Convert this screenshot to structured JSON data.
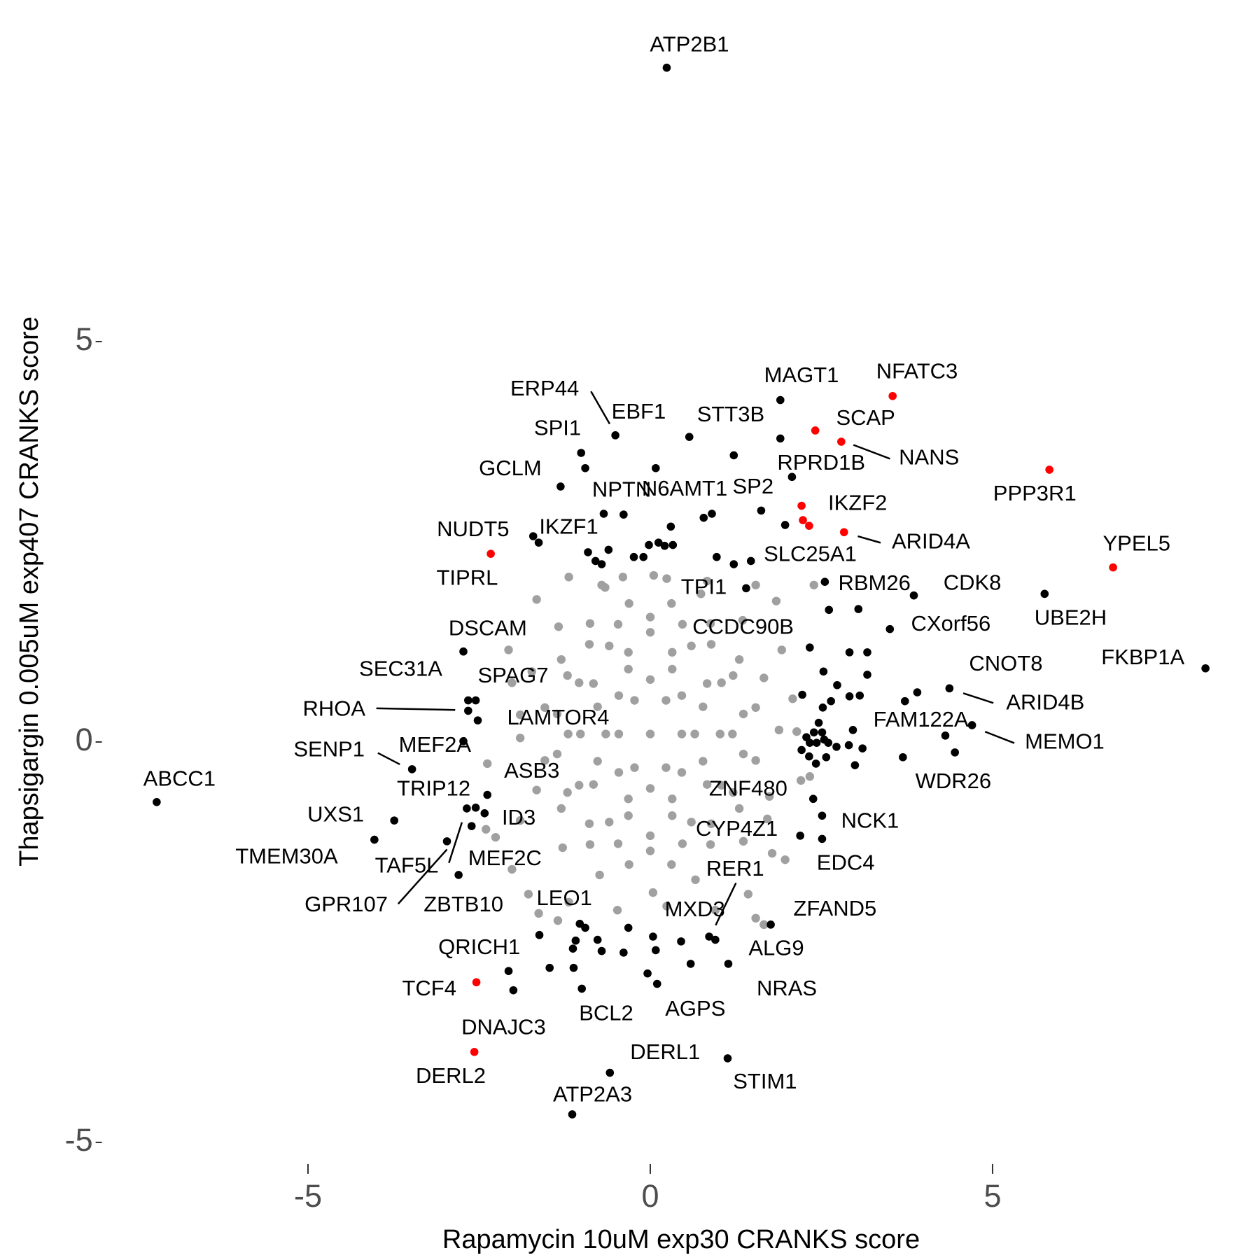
{
  "chart_data": {
    "type": "scatter",
    "x_label": "Rapamycin 10uM exp30 CRANKS score",
    "y_label": "Thapsigargin 0.005uM exp407 CRANKS score",
    "xlim": [
      -8,
      8.8
    ],
    "ylim": [
      -5.2,
      9.2
    ],
    "xticks": [
      -5,
      0,
      5
    ],
    "yticks": [
      -5,
      0,
      5
    ],
    "grid": false,
    "series": [
      {
        "color": "#a0a0a0",
        "x": [
          1.88,
          1.66,
          1.35,
          0.74,
          0.05,
          -0.66,
          -1.34,
          -1.73,
          -1.9,
          -1.66,
          -1.28,
          -0.74,
          0.04,
          0.66,
          1.36,
          1.74,
          1.54,
          1.3,
          0.88,
          0.31,
          -0.31,
          -0.88,
          -1.3,
          -1.54,
          -1.54,
          -1.3,
          -0.88,
          -0.31,
          0.31,
          0.88,
          1.3,
          1.54,
          1.36,
          1.21,
          0.89,
          0.47,
          0,
          -0.47,
          -0.89,
          -1.21,
          -1.36,
          -1.36,
          -1.21,
          -0.89,
          -0.47,
          0,
          0.47,
          0.89,
          1.21,
          1.36,
          1.2,
          1.04,
          0.6,
          0,
          -0.6,
          -1.04,
          -1.2,
          -1.04,
          -0.6,
          0,
          0.6,
          1.04,
          1.02,
          0.83,
          0.32,
          -0.32,
          -0.83,
          -1.02,
          -0.83,
          -0.32,
          0.32,
          0.83,
          0.77,
          0.32,
          -0.32,
          -0.77,
          -0.77,
          -0.32,
          0.32,
          0.77,
          0.65,
          0.46,
          0,
          -0.46,
          -0.65,
          -0.46,
          0,
          0.46,
          0.46,
          0.23,
          -0.23,
          -0.46,
          -0.23,
          0.23,
          0,
          2.39,
          1.92,
          1.97,
          1.66,
          1.54,
          2.33,
          1.71,
          -1.63,
          -1.35,
          -2.38,
          -2.07,
          -1.66,
          -1.19,
          -0.71,
          -0.4,
          -2.4,
          -2.26,
          -2.02,
          -1.78,
          2.14,
          2.08,
          2.2,
          1.78,
          1.43,
          0.95,
          0.24,
          -0.48,
          -1.19,
          -1.9,
          -2.02,
          1.84,
          1.54,
          0.83,
          0.24,
          -1.9
        ],
        "values": [
          0.15,
          0.8,
          1.52,
          1.85,
          2.08,
          1.93,
          1.44,
          0.88,
          0.05,
          -0.6,
          -1.32,
          -1.66,
          -1.88,
          -1.72,
          -1.24,
          -0.68,
          0.43,
          1.03,
          1.48,
          1.73,
          1.73,
          1.48,
          1.03,
          0.43,
          -0.23,
          -0.83,
          -1.28,
          -1.53,
          -1.53,
          -1.28,
          -0.83,
          -0.23,
          0.35,
          0.83,
          1.22,
          1.47,
          1.56,
          1.47,
          1.22,
          0.83,
          0.35,
          -0.15,
          -0.63,
          -1.02,
          -1.27,
          -1.36,
          -1.27,
          -1.02,
          -0.63,
          -0.15,
          0.1,
          0.74,
          1.2,
          1.37,
          1.2,
          0.74,
          0.1,
          -0.54,
          -1.0,
          -1.17,
          -1.0,
          -0.54,
          0.1,
          0.73,
          1.12,
          1.12,
          0.73,
          0.1,
          -0.53,
          -0.92,
          -0.92,
          -0.53,
          0.44,
          0.91,
          0.91,
          0.44,
          -0.24,
          -0.71,
          -0.71,
          -0.24,
          0.1,
          0.58,
          0.78,
          0.58,
          0.1,
          -0.38,
          -0.58,
          -0.38,
          0.1,
          0.52,
          0.52,
          0.1,
          -0.32,
          -0.32,
          0.1,
          1.96,
          1.15,
          -1.47,
          -2.28,
          -2.2,
          -0.43,
          -0.96,
          -2.14,
          -2.23,
          -0.27,
          1.15,
          1.78,
          2.06,
          1.96,
          2.06,
          -1.09,
          -1.19,
          -1.59,
          -1.9,
          0.13,
          0.54,
          -0.48,
          -1.39,
          -1.9,
          -2.1,
          -2.05,
          -2.1,
          -2.0,
          0.34,
          0.74,
          1.76,
          1.96,
          2.01,
          2.04,
          -0.98
        ]
      },
      {
        "color": "#000000",
        "x": [
          0.24,
          1.9,
          1.9,
          -0.51,
          0.57,
          -1.01,
          -0.95,
          0.08,
          1.22,
          -1.31,
          2.07,
          -0.68,
          -0.39,
          0.3,
          1.62,
          0.9,
          0.78,
          1.97,
          -1.71,
          -1.63,
          -0.91,
          -0.8,
          -0.71,
          -0.61,
          -0.24,
          -0.1,
          -0.02,
          0.12,
          0.21,
          0.33,
          0.97,
          1.22,
          1.47,
          1.4,
          2.55,
          2.61,
          3.04,
          3.85,
          5.76,
          3.5,
          2.33,
          -2.73,
          8.11,
          2.91,
          3.17,
          3.17,
          2.73,
          2.53,
          3.06,
          2.91,
          2.64,
          2.22,
          2.52,
          2.46,
          3.9,
          4.37,
          3.72,
          4.31,
          4.7,
          4.45,
          3.69,
          -2.66,
          -2.55,
          -2.66,
          -2.52,
          -2.73,
          -3.48,
          -7.21,
          -2.38,
          -2.55,
          -2.68,
          -2.42,
          -2.61,
          -3.74,
          -4.03,
          -2.97,
          -2.8,
          2.38,
          2.51,
          2.19,
          2.51,
          2.28,
          2.39,
          2.51,
          2.33,
          2.43,
          2.54,
          2.6,
          2.21,
          2.32,
          2.42,
          2.57,
          2.72,
          2.96,
          2.99,
          2.9,
          3.1,
          0.86,
          0.45,
          1.76,
          0.95,
          1.14,
          -1.03,
          -0.95,
          -1.09,
          -0.77,
          -0.71,
          -1.13,
          -1.62,
          -1.47,
          -1.12,
          -0.32,
          0.08,
          0.04,
          0.59,
          -0.04,
          -0.39,
          -2.07,
          -2.0,
          -1.0,
          0.1,
          -0.59,
          1.13,
          -1.14
        ],
        "values": [
          8.42,
          4.27,
          3.79,
          3.83,
          3.81,
          3.61,
          3.42,
          3.42,
          3.58,
          3.19,
          3.31,
          2.85,
          2.84,
          2.69,
          2.89,
          2.85,
          2.8,
          2.71,
          2.57,
          2.49,
          2.37,
          2.26,
          2.22,
          2.4,
          2.31,
          2.31,
          2.46,
          2.49,
          2.45,
          2.46,
          2.31,
          2.22,
          2.26,
          1.92,
          2.0,
          1.65,
          1.66,
          1.83,
          1.85,
          1.41,
          1.18,
          1.13,
          0.92,
          1.12,
          1.12,
          0.84,
          0.71,
          0.88,
          0.58,
          0.57,
          0.51,
          0.59,
          0.43,
          0.24,
          0.62,
          0.67,
          0.51,
          0.08,
          0.21,
          -0.13,
          -0.19,
          0.52,
          0.52,
          0.39,
          0.27,
          0.01,
          -0.34,
          -0.75,
          -0.66,
          -0.82,
          -0.83,
          -0.89,
          -1.05,
          -0.98,
          -1.22,
          -1.24,
          -1.66,
          -0.71,
          -0.92,
          -1.17,
          -1.21,
          0.06,
          0.12,
          0.12,
          -0.01,
          -0.01,
          0.03,
          -0.01,
          -0.1,
          -0.18,
          -0.27,
          -0.19,
          -0.06,
          0.15,
          -0.29,
          -0.04,
          -0.08,
          -2.43,
          -2.49,
          -2.28,
          -2.47,
          -2.77,
          -2.27,
          -2.32,
          -2.48,
          -2.47,
          -2.61,
          -2.58,
          -2.41,
          -2.82,
          -2.82,
          -2.32,
          -2.6,
          -2.43,
          -2.77,
          -2.89,
          -2.63,
          -2.86,
          -3.1,
          -3.08,
          -3.02,
          -4.13,
          -3.95,
          -4.65
        ],
        "labels": [
          "ATP2B1",
          "MAGT1",
          null,
          "ERP44",
          "STT3B",
          "SPI1",
          null,
          "EBF1",
          null,
          "GCLM",
          "RPRD1B",
          "NPTN",
          null,
          "N6AMT1",
          "SP2",
          null,
          null,
          null,
          "NUDT5",
          "IKZF1",
          null,
          null,
          null,
          null,
          null,
          null,
          null,
          null,
          null,
          null,
          null,
          null,
          "SLC25A1",
          "TPI1",
          "RBM26",
          null,
          null,
          "CDK8",
          "UBE2H",
          "CXorf56",
          "CCDC90B",
          "DSCAM",
          "FKBP1A",
          null,
          null,
          null,
          null,
          null,
          null,
          null,
          null,
          null,
          null,
          null,
          "CNOT8",
          "ARID4B",
          null,
          "FAM122A",
          "MEMO1",
          "WDR26",
          null,
          "SEC31A",
          "SPAG7",
          "RHOA",
          "LAMTOR4",
          "MEF2A",
          "SENP1",
          "ABCC1",
          "TRIP12",
          "ASB3",
          "TAF5L",
          "ID3",
          "MEF2C",
          "UXS1",
          "TMEM30A",
          "GPR107",
          "ZBTB10",
          "ZNF480",
          "NCK1",
          "CYP4Z1",
          "EDC4",
          null,
          null,
          null,
          null,
          null,
          null,
          null,
          null,
          null,
          null,
          null,
          null,
          null,
          null,
          null,
          null,
          "RER1",
          "MXD3",
          "ZFAND5",
          "ALG9",
          "NRAS",
          "LEO1",
          null,
          null,
          null,
          null,
          null,
          null,
          null,
          null,
          null,
          null,
          null,
          null,
          null,
          null,
          "QRICH1",
          "DNAJC3",
          "BCL2",
          "AGPS",
          "DERL1",
          "STIM1",
          "ATP2A3"
        ]
      },
      {
        "color": "#ff0000",
        "x": [
          3.54,
          2.41,
          2.79,
          5.83,
          2.21,
          2.23,
          2.32,
          2.83,
          -2.33,
          6.76,
          -2.54,
          -2.57
        ],
        "values": [
          4.32,
          3.89,
          3.75,
          3.4,
          2.95,
          2.77,
          2.7,
          2.62,
          2.35,
          2.18,
          -3.0,
          -3.87
        ],
        "labels": [
          "NFATC3",
          "SCAP",
          "NANS",
          "PPP3R1",
          "IKZF2",
          null,
          null,
          "ARID4A",
          "TIPRL",
          "YPEL5",
          "TCF4",
          "DERL2"
        ]
      }
    ]
  }
}
